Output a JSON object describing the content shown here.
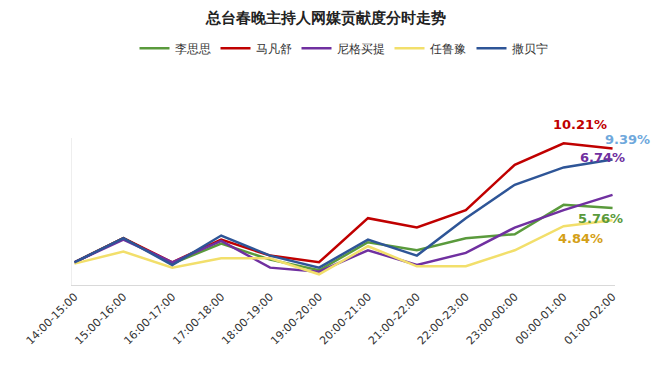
{
  "chart_data": {
    "type": "line",
    "title": "总台春晚主持人网媒贡献度分时走势",
    "categories": [
      "14:00-15:00",
      "15:00-16:00",
      "16:00-17:00",
      "17:00-18:00",
      "18:00-19:00",
      "19:00-20:00",
      "20:00-21:00",
      "21:00-22:00",
      "22:00-23:00",
      "23:00-00:00",
      "00:00-01:00",
      "01:00-02:00"
    ],
    "series": [
      {
        "name": "李思思",
        "color": "#5a9a3c",
        "values": [
          1.7,
          3.5,
          1.6,
          3.1,
          1.9,
          1.1,
          3.2,
          2.6,
          3.5,
          3.8,
          6.0,
          5.76
        ]
      },
      {
        "name": "马凡舒",
        "color": "#c00000",
        "values": [
          1.7,
          3.5,
          1.7,
          3.4,
          2.2,
          1.7,
          5.0,
          4.3,
          5.6,
          9.0,
          10.6,
          10.21
        ]
      },
      {
        "name": "尼格买提",
        "color": "#7030a0",
        "values": [
          1.7,
          3.4,
          1.7,
          3.3,
          1.3,
          1.0,
          2.6,
          1.5,
          2.4,
          4.3,
          5.6,
          6.74
        ]
      },
      {
        "name": "任鲁豫",
        "color": "#f2df6b",
        "values": [
          1.6,
          2.5,
          1.3,
          2.0,
          2.0,
          0.8,
          2.9,
          1.4,
          1.4,
          2.6,
          4.4,
          4.84
        ]
      },
      {
        "name": "撒贝宁",
        "color": "#2e5597",
        "values": [
          1.7,
          3.5,
          1.5,
          3.7,
          2.2,
          1.3,
          3.4,
          2.2,
          5.0,
          7.5,
          8.8,
          9.39
        ]
      }
    ],
    "ylim": [
      0,
      11
    ],
    "grid": false,
    "tick_labels": "x",
    "legend": "top",
    "annotations": [
      {
        "text": "10.21%",
        "series": "马凡舒",
        "category": "01:00-02:00",
        "color": "#c00000"
      },
      {
        "text": "9.39%",
        "series": "撒贝宁",
        "category": "01:00-02:00",
        "color": "#6fa8dc"
      },
      {
        "text": "6.74%",
        "series": "尼格买提",
        "category": "01:00-02:00",
        "color": "#7030a0"
      },
      {
        "text": "5.76%",
        "series": "李思思",
        "category": "01:00-02:00",
        "color": "#5a9a3c"
      },
      {
        "text": "4.84%",
        "series": "任鲁豫",
        "category": "01:00-02:00",
        "color": "#d4a017"
      }
    ]
  }
}
